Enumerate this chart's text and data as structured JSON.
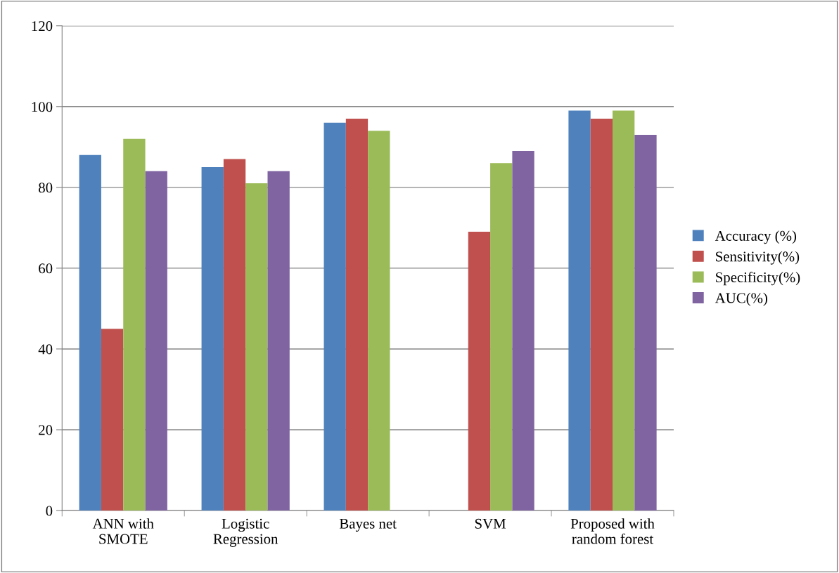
{
  "chart_data": {
    "type": "bar",
    "categories": [
      "ANN with\nSMOTE",
      "Logistic\nRegression",
      "Bayes net",
      "SVM",
      "Proposed with\nrandom forest"
    ],
    "series": [
      {
        "name": "Accuracy (%)",
        "color": "#4f81bd",
        "values": [
          88,
          85,
          96,
          null,
          99
        ]
      },
      {
        "name": "Sensitivity(%)",
        "color": "#c0504d",
        "values": [
          45,
          87,
          97,
          69,
          97
        ]
      },
      {
        "name": "Specificity(%)",
        "color": "#9bbb59",
        "values": [
          92,
          81,
          94,
          86,
          99
        ]
      },
      {
        "name": "AUC(%)",
        "color": "#8064a2",
        "values": [
          84,
          84,
          null,
          89,
          93
        ]
      }
    ],
    "ylim": [
      0,
      120
    ],
    "yticks": [
      0,
      20,
      40,
      60,
      80,
      100,
      120
    ],
    "grid": "y",
    "legend": "right"
  }
}
